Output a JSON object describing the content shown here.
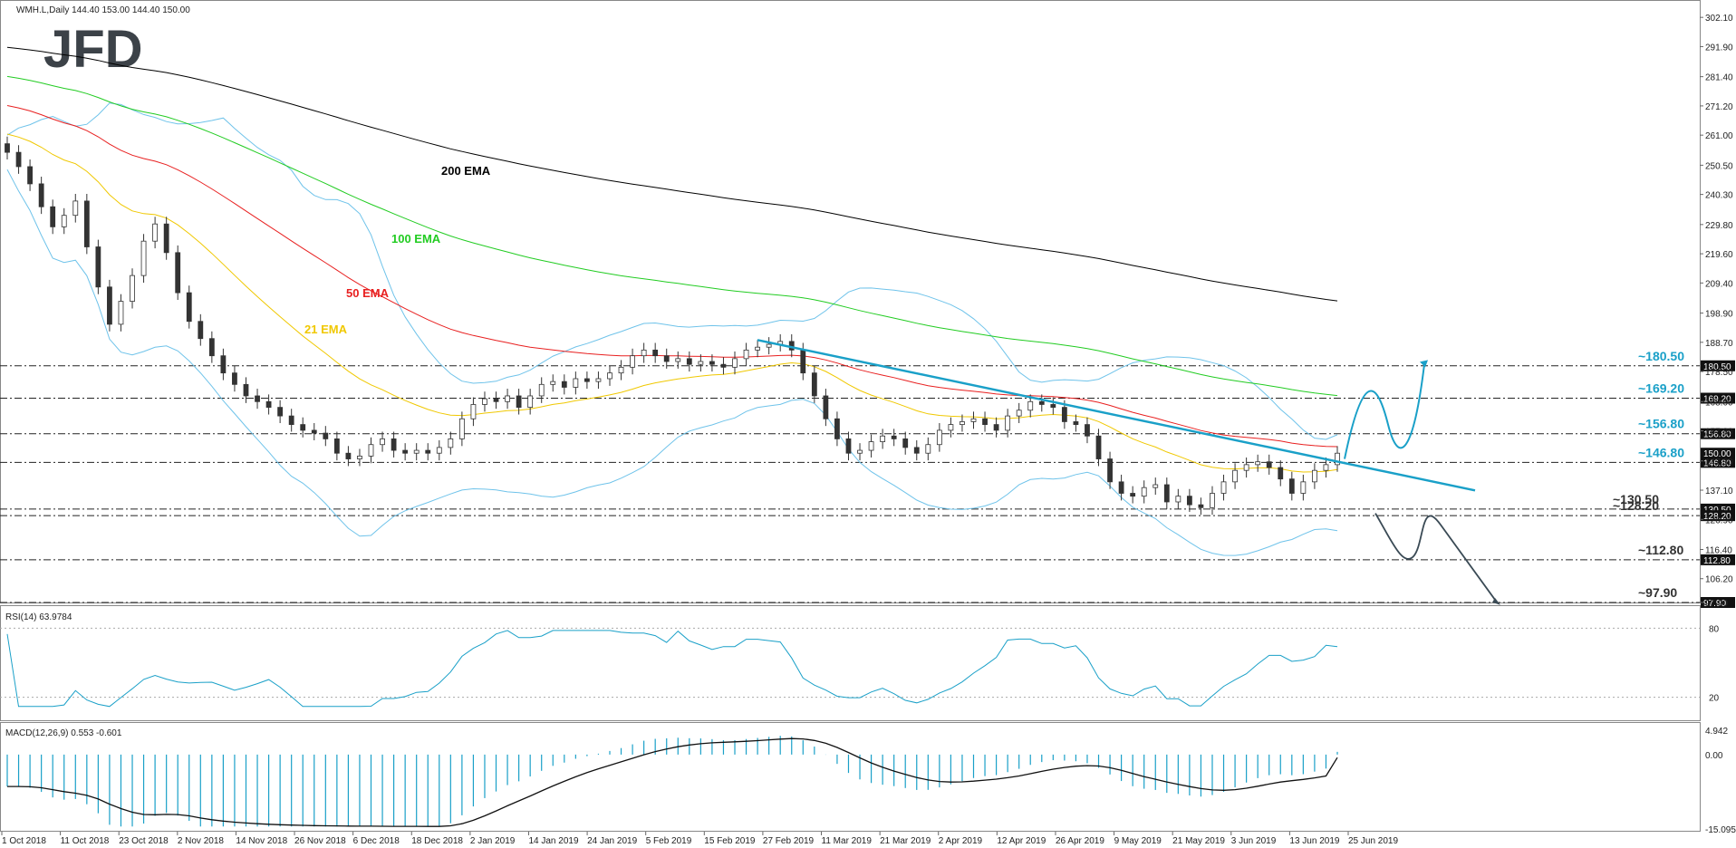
{
  "chart_data": {
    "type": "candlestick",
    "symbol_header": "WMH.L,Daily  144.40 153.00 144.40 150.00",
    "logo": "JFD",
    "ohlc_last": {
      "open": 144.4,
      "high": 153.0,
      "low": 144.4,
      "close": 150.0
    },
    "price_axis": {
      "ylim": [
        97.9,
        305.0
      ],
      "ticks": [
        302.1,
        291.9,
        281.4,
        271.2,
        261.0,
        250.5,
        240.3,
        229.8,
        219.6,
        209.4,
        198.9,
        188.7,
        178.5,
        168.0,
        157.8,
        147.3,
        137.1,
        126.9,
        116.4,
        106.2,
        97.9
      ]
    },
    "x_axis": {
      "labels": [
        "1 Oct 2018",
        "11 Oct 2018",
        "23 Oct 2018",
        "2 Nov 2018",
        "14 Nov 2018",
        "26 Nov 2018",
        "6 Dec 2018",
        "18 Dec 2018",
        "2 Jan 2019",
        "14 Jan 2019",
        "24 Jan 2019",
        "5 Feb 2019",
        "15 Feb 2019",
        "27 Feb 2019",
        "11 Mar 2019",
        "21 Mar 2019",
        "2 Apr 2019",
        "12 Apr 2019",
        "26 Apr 2019",
        "9 May 2019",
        "21 May 2019",
        "3 Jun 2019",
        "13 Jun 2019",
        "25 Jun 2019"
      ]
    },
    "levels": [
      {
        "value": 180.5,
        "label": "~180.50",
        "axis_tag": "180.50",
        "color": "#1aa0c8"
      },
      {
        "value": 169.2,
        "label": "~169.20",
        "axis_tag": "169.20",
        "color": "#1aa0c8"
      },
      {
        "value": 156.8,
        "label": "~156.80",
        "axis_tag": "156.80",
        "color": "#1aa0c8"
      },
      {
        "value": 146.8,
        "label": "~146.80",
        "axis_tag": "146.80",
        "color": "#1aa0c8"
      },
      {
        "value": 130.5,
        "label": "~130.50",
        "axis_tag": "130.50",
        "color": "#333333"
      },
      {
        "value": 128.2,
        "label": "~128.20",
        "axis_tag": "128.20",
        "color": "#333333"
      },
      {
        "value": 112.8,
        "label": "~112.80",
        "axis_tag": "112.80",
        "color": "#333333"
      },
      {
        "value": 97.9,
        "label": "~97.90",
        "axis_tag": "97.90",
        "color": "#333333"
      }
    ],
    "current_price_tag": "150.00",
    "ema_labels": [
      {
        "name": "200 EMA",
        "color": "#000000"
      },
      {
        "name": "100 EMA",
        "color": "#22cc22"
      },
      {
        "name": "50 EMA",
        "color": "#e82020"
      },
      {
        "name": "21 EMA",
        "color": "#f0c800"
      }
    ],
    "close_series": [
      255,
      250,
      244,
      236,
      229,
      233,
      238,
      222,
      208,
      195,
      203,
      212,
      224,
      230,
      220,
      206,
      196,
      190,
      184,
      178,
      174,
      170,
      168,
      166,
      163,
      160,
      158,
      157,
      155,
      150,
      148,
      149,
      153,
      155,
      151,
      150,
      151,
      150,
      152,
      155,
      162,
      167,
      169,
      168,
      170,
      166,
      170,
      174,
      175,
      173,
      176,
      175,
      176,
      178,
      180,
      184,
      186,
      184,
      182,
      183,
      181,
      182,
      181,
      180,
      183,
      186,
      187,
      188,
      189,
      186,
      178,
      170,
      162,
      155,
      150,
      151,
      154,
      156,
      155,
      152,
      150,
      153,
      158,
      160,
      161,
      162,
      160,
      158,
      163,
      165,
      168,
      167,
      166,
      161,
      160,
      156,
      148,
      140,
      136,
      135,
      138,
      139,
      133,
      135,
      132,
      131,
      136,
      140,
      144,
      146,
      147,
      145,
      141,
      136,
      140,
      144,
      146,
      150
    ],
    "rsi": {
      "label": "RSI(14) 63.9784",
      "value": 63.9784,
      "levels": [
        80,
        20
      ]
    },
    "macd": {
      "label": "MACD(12,26,9) 0.553 -0.601",
      "main": 0.553,
      "signal": -0.601,
      "ticks": [
        "4.942",
        "0.00",
        "-15.095"
      ]
    },
    "colors": {
      "accent": "#1aa0c8",
      "bollinger": "#6fc3ea",
      "dark_arrow": "#3a4a55",
      "bull_body": "#ffffff",
      "bear_body": "#333333"
    }
  }
}
